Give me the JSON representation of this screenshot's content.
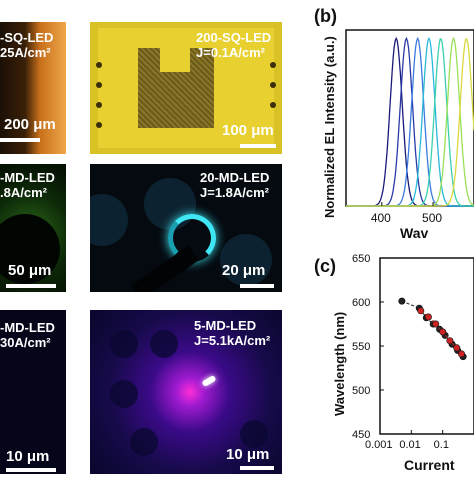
{
  "panels": {
    "a1": {
      "label_line1": "-SQ-LED",
      "label_line2": "25A/cm²",
      "scale": "200 μm"
    },
    "a2": {
      "label_line1": "200-SQ-LED",
      "label_line2": "J=0.1A/cm²",
      "scale": "100 μm"
    },
    "b1": {
      "label_line1": "-MD-LED",
      "label_line2": ".8A/cm²",
      "scale": "50 μm"
    },
    "b2": {
      "label_line1": "20-MD-LED",
      "label_line2": "J=1.8A/cm²",
      "scale": "20 μm"
    },
    "c1": {
      "label_line1": "-MD-LED",
      "label_line2": "30A/cm²",
      "scale": "10 μm"
    },
    "c2": {
      "label_line1": "5-MD-LED",
      "label_line2": "J=5.1kA/cm²",
      "scale": "10 μm"
    }
  },
  "letters": {
    "b": "(b)",
    "c": "(c)"
  },
  "chart_data": [
    {
      "type": "line",
      "ylabel": "Normalized EL Intensity (a.u.)",
      "xlabel": "Wav",
      "x_ticks": [
        "400",
        "500"
      ],
      "xlim": [
        330,
        580
      ],
      "ylim": [
        0,
        1.05
      ],
      "series_colors": [
        "#1a1a7a",
        "#2a3aa8",
        "#3a7ae0",
        "#2ab8d8",
        "#3ad0b0",
        "#9adf5a",
        "#d8d840"
      ],
      "peaks_nm": [
        428,
        448,
        470,
        492,
        515,
        540,
        565
      ],
      "fwhm_nm": 28
    },
    {
      "type": "scatter",
      "ylabel": "Wavelength (nm)",
      "xlabel": "Current",
      "log_x": true,
      "xlim": [
        0.001,
        1
      ],
      "ylim": [
        450,
        650
      ],
      "y_ticks": [
        "450",
        "500",
        "550",
        "600",
        "650"
      ],
      "x_ticks": [
        "0.001",
        "0.01",
        "0.1"
      ],
      "series": [
        {
          "name": "",
          "x": [
            0.005,
            0.018,
            0.03,
            0.05,
            0.08,
            0.12,
            0.2,
            0.3,
            0.45
          ],
          "y": [
            601,
            593,
            582,
            575,
            569,
            562,
            552,
            545,
            538
          ],
          "color": "#222222"
        },
        {
          "name": "",
          "x": [
            0.02,
            0.035,
            0.06,
            0.1,
            0.17,
            0.28,
            0.4
          ],
          "y": [
            590,
            583,
            575,
            566,
            556,
            548,
            541
          ],
          "color": "#cc2222"
        }
      ]
    }
  ]
}
